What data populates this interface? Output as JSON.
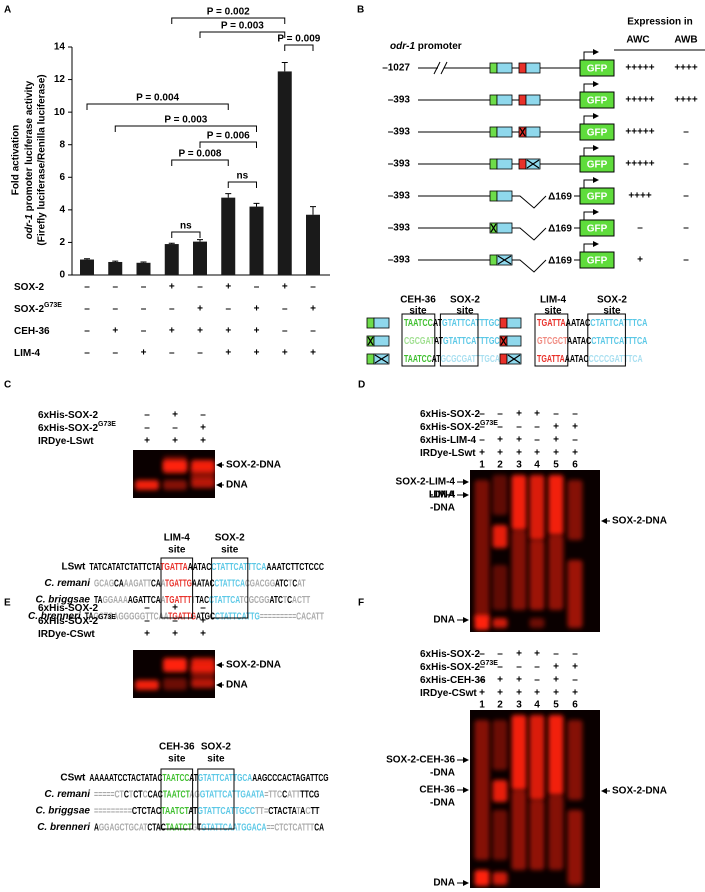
{
  "panels": {
    "a": {
      "letter": "A",
      "chart": {
        "type": "bar",
        "ylabel": [
          "Fold activation",
          [
            "odr-1",
            " promoter luciferase activity"
          ],
          "(Firefly luciferase/Renilla luciferase)"
        ],
        "values": [
          0.95,
          0.8,
          0.75,
          1.9,
          2.05,
          4.75,
          4.2,
          12.5,
          3.7
        ],
        "errors": [
          0.05,
          0.05,
          0.05,
          0.05,
          0.12,
          0.25,
          0.2,
          0.55,
          0.5
        ],
        "color": "#1a1a1a",
        "ylim": [
          0,
          14
        ],
        "yticks": [
          0,
          2,
          4,
          6,
          8,
          10,
          12,
          14
        ],
        "comparisons": [
          "P = 0.002",
          "P = 0.003",
          "P = 0.009",
          "P = 0.004",
          "P = 0.003",
          "P = 0.006",
          "P = 0.008",
          "ns",
          "ns"
        ],
        "conditions": [
          {
            "name": "SOX-2",
            "signs": [
              "–",
              "–",
              "–",
              "+",
              "–",
              "+",
              "–",
              "+",
              "–"
            ]
          },
          {
            "name": "SOX-2",
            "sup": "G73E",
            "signs": [
              "–",
              "–",
              "–",
              "–",
              "+",
              "–",
              "+",
              "–",
              "+"
            ]
          },
          {
            "name": "CEH-36",
            "signs": [
              "–",
              "+",
              "–",
              "+",
              "+",
              "+",
              "+",
              "–",
              "–"
            ]
          },
          {
            "name": "LIM-4",
            "signs": [
              "–",
              "–",
              "+",
              "–",
              "–",
              "+",
              "+",
              "+",
              "+"
            ]
          }
        ]
      }
    },
    "b": {
      "letter": "B",
      "promoter": [
        "odr-1",
        " promoter"
      ],
      "expression": "Expression in",
      "cells": [
        "AWC",
        "AWB"
      ],
      "gfp": "GFP",
      "deletion": "Δ169",
      "constructs": [
        {
          "start": "–1027",
          "awc": "+++++",
          "awb": "++++"
        },
        {
          "start": "–393",
          "awc": "+++++",
          "awb": "++++"
        },
        {
          "start": "–393",
          "awc": "+++++",
          "awb": "–"
        },
        {
          "start": "–393",
          "awc": "+++++",
          "awb": "–"
        },
        {
          "start": "–393",
          "awc": "++++",
          "awb": "–"
        },
        {
          "start": "–393",
          "awc": "–",
          "awb": "–"
        },
        {
          "start": "–393",
          "awc": "+",
          "awb": "–"
        }
      ],
      "legend": {
        "headers": [
          [
            "CEH-36",
            "site"
          ],
          [
            "SOX-2",
            "site"
          ],
          [
            "LIM-4",
            "site"
          ],
          [
            "SOX-2",
            "site"
          ]
        ],
        "left": [
          [
            [
              "TAATCC",
              "#3fbf2f"
            ],
            [
              "AT",
              "#000"
            ],
            [
              "GTATTCATTTGCA",
              "#5bc8e6"
            ]
          ],
          [
            [
              "CGCGAT",
              "#9fdf8f"
            ],
            [
              "AT",
              "#000"
            ],
            [
              "GTATTCATTTGCA",
              "#5bc8e6"
            ]
          ],
          [
            [
              "TAATCC",
              "#3fbf2f"
            ],
            [
              "AT",
              "#000"
            ],
            [
              "GCGCGATTTGCA",
              "#a8dff0"
            ]
          ]
        ],
        "right": [
          [
            [
              "TGATTA",
              "#e8312a"
            ],
            [
              "AATAC",
              "#000"
            ],
            [
              "CTATTCATTTCA",
              "#5bc8e6"
            ]
          ],
          [
            [
              "GTCGCT",
              "#f08a80"
            ],
            [
              "AATAC",
              "#000"
            ],
            [
              "CTATTCATTTCA",
              "#5bc8e6"
            ]
          ],
          [
            [
              "TGATTA",
              "#e8312a"
            ],
            [
              "AATAC",
              "#000"
            ],
            [
              "CCCCGATTTCA",
              "#a8dff0"
            ]
          ]
        ]
      }
    },
    "c": {
      "letter": "C",
      "rows": [
        {
          "name": "6xHis-SOX-2",
          "signs": [
            "–",
            "+",
            "–"
          ]
        },
        {
          "name": "6xHis-SOX-2",
          "sup": "G73E",
          "signs": [
            "–",
            "–",
            "+"
          ]
        },
        {
          "name": "IRDye-LSwt",
          "signs": [
            "+",
            "+",
            "+"
          ]
        }
      ],
      "bands": [
        "SOX-2-DNA",
        "DNA"
      ],
      "sites": [
        [
          "LIM-4",
          "site"
        ],
        [
          "SOX-2",
          "site"
        ]
      ],
      "alignment": [
        {
          "name": "LSwt",
          "italic": false,
          "segments": [
            [
              "TATCATATCTATTCTA",
              "#000"
            ],
            [
              "TGATTA",
              "#e8312a"
            ],
            [
              "AATAC",
              "#000"
            ],
            [
              "CTATTCATTTCA",
              "#5bc8e6"
            ],
            [
              "AAATCTTCTCCC",
              "#000"
            ]
          ]
        },
        {
          "name": "C. remani",
          "italic": true,
          "segments": [
            [
              "GCAG",
              "#aaa"
            ],
            [
              "CA",
              "#000"
            ],
            [
              "AAGATT",
              "#aaa"
            ],
            [
              "CA",
              "#000"
            ],
            [
              "A",
              "#aaa"
            ],
            [
              "TGATTG",
              "#e8312a"
            ],
            [
              "AATAC",
              "#000"
            ],
            [
              "CTATTCA",
              "#5bc8e6"
            ],
            [
              "CGACGG",
              "#aaa"
            ],
            [
              "ATC",
              "#000"
            ],
            [
              "T",
              "#aaa"
            ],
            [
              "C",
              "#000"
            ],
            [
              "AT",
              "#aaa"
            ]
          ]
        },
        {
          "name": "C. briggsae",
          "italic": true,
          "segments": [
            [
              "TA",
              "#000"
            ],
            [
              "GGAAA",
              "#aaa"
            ],
            [
              "AGATTCA",
              "#000"
            ],
            [
              "A",
              "#aaa"
            ],
            [
              "TGATTT",
              "#e8312a"
            ],
            [
              "T",
              "#aaa"
            ],
            [
              "TAC",
              "#000"
            ],
            [
              "CTATTCA",
              "#5bc8e6"
            ],
            [
              "TCGCGG",
              "#aaa"
            ],
            [
              "ATC",
              "#000"
            ],
            [
              "T",
              "#aaa"
            ],
            [
              "C",
              "#000"
            ],
            [
              "ACTT",
              "#aaa"
            ]
          ]
        },
        {
          "name": "C. brenneri",
          "italic": true,
          "segments": [
            [
              "TA",
              "#000"
            ],
            [
              "GCTGAGGGGGTTCAA",
              "#aaa"
            ],
            [
              "TGATTG",
              "#e8312a"
            ],
            [
              "ATGC",
              "#000"
            ],
            [
              "CTATTCATTG",
              "#5bc8e6"
            ],
            [
              "=========CACATT",
              "#aaa"
            ]
          ]
        }
      ]
    },
    "d": {
      "letter": "D",
      "rows": [
        {
          "name": "6xHis-SOX-2",
          "signs": [
            "–",
            "–",
            "+",
            "+",
            "–",
            "–"
          ]
        },
        {
          "name": "6xHis-SOX-2",
          "sup": "G73E",
          "signs": [
            "–",
            "–",
            "–",
            "–",
            "+",
            "+"
          ]
        },
        {
          "name": "6xHis-LIM-4",
          "signs": [
            "–",
            "+",
            "+",
            "–",
            "+",
            "–"
          ]
        },
        {
          "name": "IRDye-LSwt",
          "signs": [
            "+",
            "+",
            "+",
            "+",
            "+",
            "+"
          ]
        }
      ],
      "lanes": [
        "1",
        "2",
        "3",
        "4",
        "5",
        "6"
      ],
      "left_labels": [
        [
          "SOX-2-LIM-4",
          "-DNA"
        ],
        [
          "LIM-4",
          "-DNA"
        ],
        [
          "DNA"
        ]
      ],
      "right_label": "SOX-2-DNA"
    },
    "e": {
      "letter": "E",
      "rows": [
        {
          "name": "6xHis-SOX-2",
          "signs": [
            "–",
            "+",
            "–"
          ]
        },
        {
          "name": "6xHis-SOX-2",
          "sup": "G73E",
          "signs": [
            "–",
            "–",
            "+"
          ]
        },
        {
          "name": "IRDye-CSwt",
          "signs": [
            "+",
            "+",
            "+"
          ]
        }
      ],
      "bands": [
        "SOX-2-DNA",
        "DNA"
      ],
      "sites": [
        [
          "CEH-36",
          "site"
        ],
        [
          "SOX-2",
          "site"
        ]
      ],
      "alignment": [
        {
          "name": "CSwt",
          "italic": false,
          "segments": [
            [
              "AAAAATCCTACTATAC",
              "#000"
            ],
            [
              "TAATCC",
              "#3fbf2f"
            ],
            [
              "AT",
              "#000"
            ],
            [
              "GTATTCATTGCA",
              "#5bc8e6"
            ],
            [
              "AAGCCCACTAGATTCG",
              "#000"
            ]
          ]
        },
        {
          "name": "C. remani",
          "italic": true,
          "segments": [
            [
              "=====CT",
              "#aaa"
            ],
            [
              "C",
              "#000"
            ],
            [
              "T",
              "#aaa"
            ],
            [
              "CT",
              "#000"
            ],
            [
              "C",
              "#aaa"
            ],
            [
              "CAC",
              "#000"
            ],
            [
              "TAATCT",
              "#3fbf2f"
            ],
            [
              "AG",
              "#aaa"
            ],
            [
              "GTATTCATTGAATA",
              "#5bc8e6"
            ],
            [
              "=TTC",
              "#aaa"
            ],
            [
              "C",
              "#000"
            ],
            [
              "ATT",
              "#aaa"
            ],
            [
              "TTCG",
              "#000"
            ]
          ]
        },
        {
          "name": "C. briggsae",
          "italic": true,
          "segments": [
            [
              "=========",
              "#aaa"
            ],
            [
              "CTCTAC",
              "#000"
            ],
            [
              "TAATCT",
              "#3fbf2f"
            ],
            [
              "AT",
              "#000"
            ],
            [
              "GTATTCATTGCC",
              "#5bc8e6"
            ],
            [
              "TT=",
              "#aaa"
            ],
            [
              "CTACTA",
              "#000"
            ],
            [
              "T",
              "#aaa"
            ],
            [
              "A",
              "#000"
            ],
            [
              "C",
              "#aaa"
            ],
            [
              "TT",
              "#000"
            ]
          ]
        },
        {
          "name": "C. brenneri",
          "italic": true,
          "segments": [
            [
              "A",
              "#000"
            ],
            [
              "GGAGCTGCAT",
              "#aaa"
            ],
            [
              "CTAC",
              "#000"
            ],
            [
              "TAATCT",
              "#3fbf2f"
            ],
            [
              "G",
              "#aaa"
            ],
            [
              "T",
              "#000"
            ],
            [
              "GTATTCAATGGACA",
              "#5bc8e6"
            ],
            [
              "==CTCTCATTT",
              "#aaa"
            ],
            [
              "CA",
              "#000"
            ]
          ]
        }
      ]
    },
    "f": {
      "letter": "F",
      "rows": [
        {
          "name": "6xHis-SOX-2",
          "signs": [
            "–",
            "–",
            "+",
            "+",
            "–",
            "–"
          ]
        },
        {
          "name": "6xHis-SOX-2",
          "sup": "G73E",
          "signs": [
            "–",
            "–",
            "–",
            "–",
            "+",
            "+"
          ]
        },
        {
          "name": "6xHis-CEH-36",
          "signs": [
            "–",
            "+",
            "+",
            "–",
            "+",
            "–"
          ]
        },
        {
          "name": "IRDye-CSwt",
          "signs": [
            "+",
            "+",
            "+",
            "+",
            "+",
            "+"
          ]
        }
      ],
      "lanes": [
        "1",
        "2",
        "3",
        "4",
        "5",
        "6"
      ],
      "left_labels": [
        [
          "SOX-2-CEH-36",
          "-DNA"
        ],
        [
          "CEH-36",
          "-DNA"
        ],
        [
          "DNA"
        ]
      ],
      "right_label": "SOX-2-DNA"
    }
  }
}
